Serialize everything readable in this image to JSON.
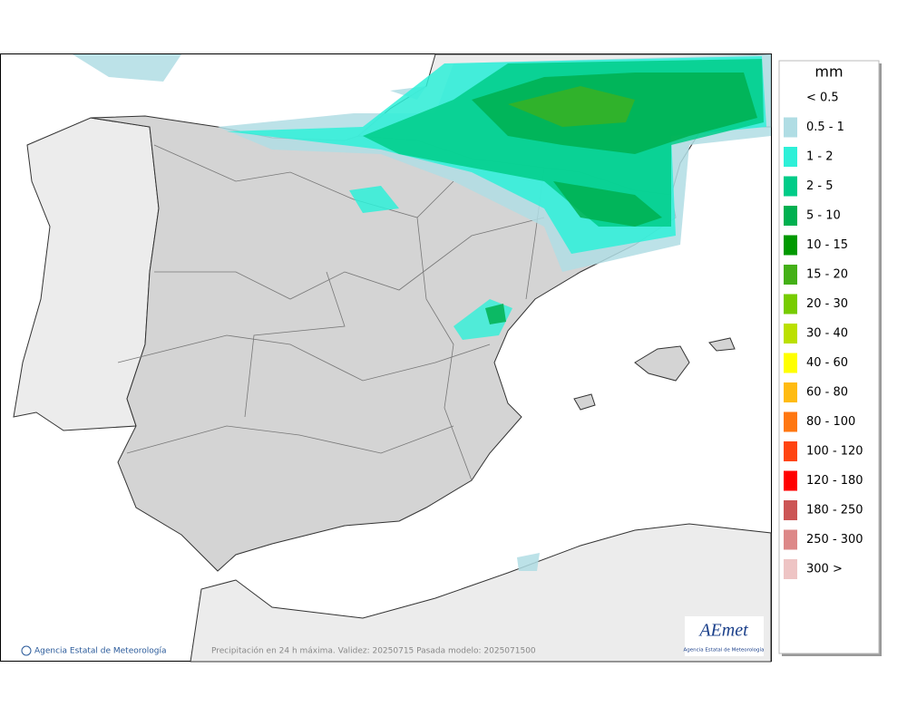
{
  "legend": {
    "title": "mm",
    "items": [
      {
        "label": "< 0.5",
        "color": "#ffffff"
      },
      {
        "label": "0.5 - 1",
        "color": "#b0dde4"
      },
      {
        "label": "1 - 2",
        "color": "#2ef0d8"
      },
      {
        "label": "2 - 5",
        "color": "#00cc88"
      },
      {
        "label": "5 - 10",
        "color": "#00b050"
      },
      {
        "label": "10 - 15",
        "color": "#009900"
      },
      {
        "label": "15 - 20",
        "color": "#44b017"
      },
      {
        "label": "20 - 30",
        "color": "#77cc00"
      },
      {
        "label": "30 - 40",
        "color": "#bbe000"
      },
      {
        "label": "40 - 60",
        "color": "#ffff00"
      },
      {
        "label": "60 - 80",
        "color": "#ffbb11"
      },
      {
        "label": "80 - 100",
        "color": "#ff7711"
      },
      {
        "label": "100 - 120",
        "color": "#ff4411"
      },
      {
        "label": "120 - 180",
        "color": "#ff0000"
      },
      {
        "label": "180 - 250",
        "color": "#cc5555"
      },
      {
        "label": "250 - 300",
        "color": "#dd8888"
      },
      {
        "label": "300 >",
        "color": "#eec4c4"
      }
    ]
  },
  "footer": {
    "credit": "Agencia Estatal de Meteorología",
    "caption": "Precipitación en 24 h máxima. Validez: 20250715 Pasada modelo: 2025071500"
  },
  "logo": {
    "name": "AEmet",
    "subtitle": "Agencia Estatal de Meteorología"
  }
}
